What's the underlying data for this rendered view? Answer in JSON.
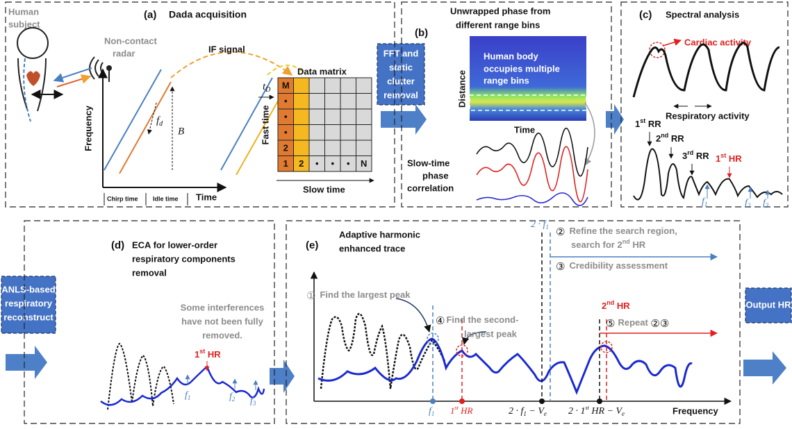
{
  "side": {
    "fft": [
      "FFT and",
      "static",
      "clutter",
      "removal"
    ],
    "anls": [
      "ANLS-based",
      "respiratory",
      "reconstruct"
    ],
    "output": "Output HR"
  },
  "panel_a": {
    "label": "(a)",
    "title": "Dada acquisition",
    "human_subject": [
      "Human",
      "subject"
    ],
    "radar": [
      "Non-contact",
      "radar"
    ],
    "if_signal": "IF signal",
    "data_matrix": "Data matrix",
    "y_axis": "Frequency",
    "x_axis": "Time",
    "chirp_time": "Chirp time",
    "idle_time": "Idle time",
    "fd": [
      "f",
      "d"
    ],
    "b": "B",
    "td": [
      "t",
      "D"
    ],
    "fast_time": "Fast time",
    "slow_time": "Slow time",
    "matrix_left": [
      "M",
      "•",
      "•",
      "•",
      "2",
      "1"
    ],
    "matrix_bottom": [
      "2",
      "•",
      "•",
      "•",
      "N"
    ]
  },
  "panel_b": {
    "label": "(b)",
    "title": [
      "Unwrapped phase from",
      "different range bins"
    ],
    "overlay": [
      "Human body",
      "occupies multiple",
      "range bins"
    ],
    "y_axis": "Distance",
    "x_axis": "Time",
    "correlation": [
      "Slow-time",
      "phase",
      "correlation"
    ]
  },
  "panel_c": {
    "label": "(c)",
    "title": "Spectral analysis",
    "cardiac": "Cardiac activity",
    "respiratory": "Respiratory activity",
    "rr1": [
      "1",
      "st",
      " RR"
    ],
    "rr2": [
      "2",
      "nd",
      " RR"
    ],
    "rr3": [
      "3",
      "rd",
      " RR"
    ],
    "hr1": [
      "1",
      "st",
      " HR"
    ],
    "f1": [
      "f",
      "1"
    ],
    "f2": [
      "f",
      "2"
    ],
    "f3": [
      "f",
      "3"
    ]
  },
  "panel_d": {
    "label": "(d)",
    "title": [
      "ECA for lower-order",
      "respiratory components",
      "removal"
    ],
    "note": [
      "Some interferences",
      "have not been fully",
      "removed."
    ],
    "hr1": [
      "1",
      "st",
      " HR"
    ],
    "f1": [
      "f",
      "1"
    ],
    "f2": [
      "f",
      "2"
    ],
    "f3": [
      "f",
      "3"
    ]
  },
  "panel_e": {
    "label": "(e)",
    "title": [
      "Adaptive harmonic",
      "enhanced trace"
    ],
    "step1": [
      "①",
      "Find the largest  peak"
    ],
    "step4": [
      "④",
      "Find the second-",
      "largest  peak"
    ],
    "step2": [
      "②",
      "Refine the search region,",
      "search for 2",
      "nd",
      " HR"
    ],
    "step3": [
      "③",
      "Credibility assessment"
    ],
    "hr2": [
      "2",
      "nd",
      " HR"
    ],
    "step5": [
      "⑤",
      "Repeat ",
      "②",
      "③"
    ],
    "two_f1": [
      "2 · ",
      "f",
      "1"
    ],
    "f1": [
      "f",
      "1"
    ],
    "hr1": [
      "1",
      "st",
      " HR"
    ],
    "two_f1_ve": [
      "2 · ",
      "f",
      "1",
      " − ",
      "V",
      "e"
    ],
    "two_hr_ve": [
      "2 · 1",
      "st",
      " HR − ",
      "V",
      "e"
    ],
    "x_axis": "Frequency"
  }
}
